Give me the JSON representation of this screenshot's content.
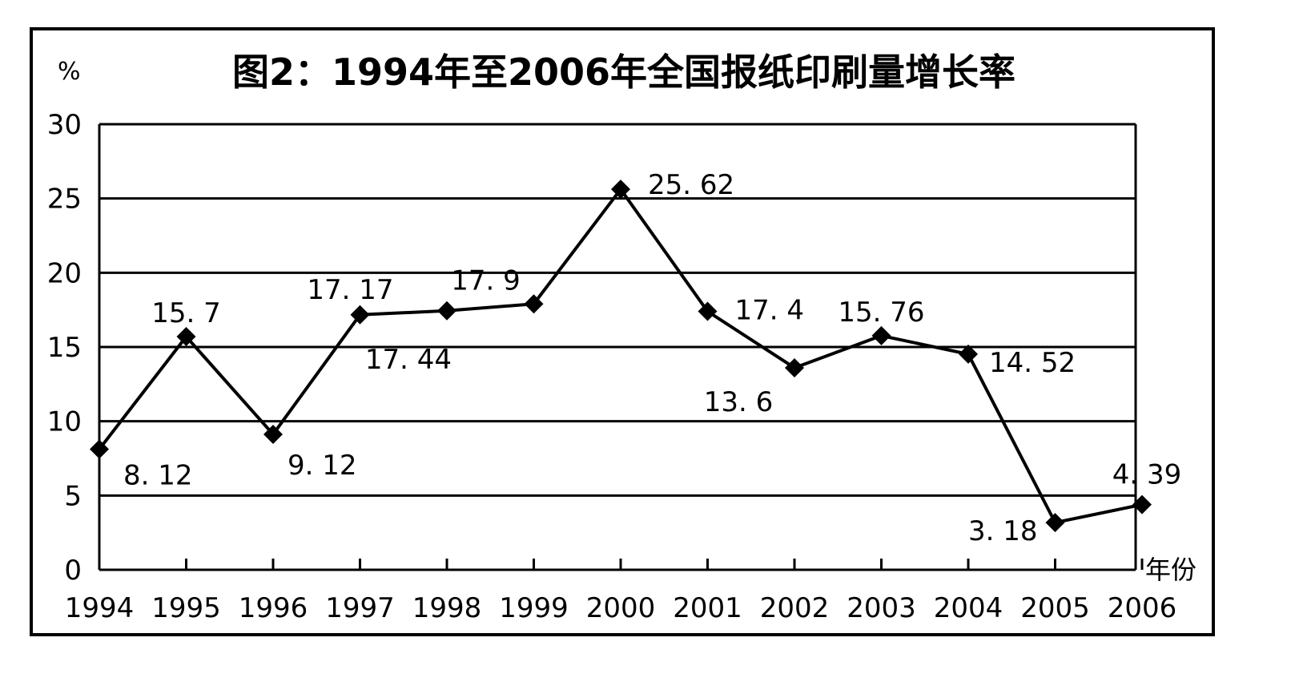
{
  "chart_data": {
    "type": "line",
    "title": "图2：1994年至2006年全国报纸印刷量增长率",
    "ylabel": "%",
    "xlabel": "年份",
    "ylim": [
      0,
      30
    ],
    "yticks": [
      "0",
      "5",
      "10",
      "15",
      "20",
      "25",
      "30"
    ],
    "grid": true,
    "categories": [
      "1994",
      "1995",
      "1996",
      "1997",
      "1998",
      "1999",
      "2000",
      "2001",
      "2002",
      "2003",
      "2004",
      "2005",
      "2006"
    ],
    "series": [
      {
        "values": [
          8.12,
          15.7,
          9.12,
          17.17,
          17.44,
          17.9,
          25.62,
          17.4,
          13.6,
          15.76,
          14.52,
          3.18,
          4.39
        ],
        "labels": [
          "8. 12",
          "15. 7",
          "9. 12",
          "17. 17",
          "17. 44",
          "17. 9",
          "25. 62",
          "17. 4",
          "13. 6",
          "15. 76",
          "14. 52",
          "3. 18",
          "4. 39"
        ]
      }
    ]
  }
}
